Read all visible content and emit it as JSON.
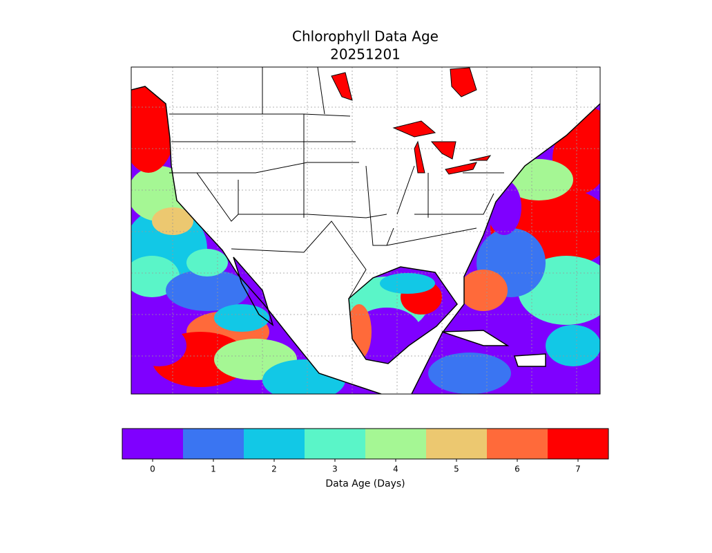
{
  "map": {
    "title": "Chlorophyll Data Age",
    "subtitle": "20251201",
    "colorbar": {
      "label": "Data Age (Days)",
      "lim": [
        -0.5,
        7.5
      ],
      "ticks": [
        0,
        1,
        2,
        3,
        4,
        5,
        6,
        7
      ],
      "colors": [
        "#7f00ff",
        "#3a75f2",
        "#12c8e6",
        "#5af5c8",
        "#a5f794",
        "#ecc870",
        "#ff6a3a",
        "#ff0000"
      ]
    }
  }
}
